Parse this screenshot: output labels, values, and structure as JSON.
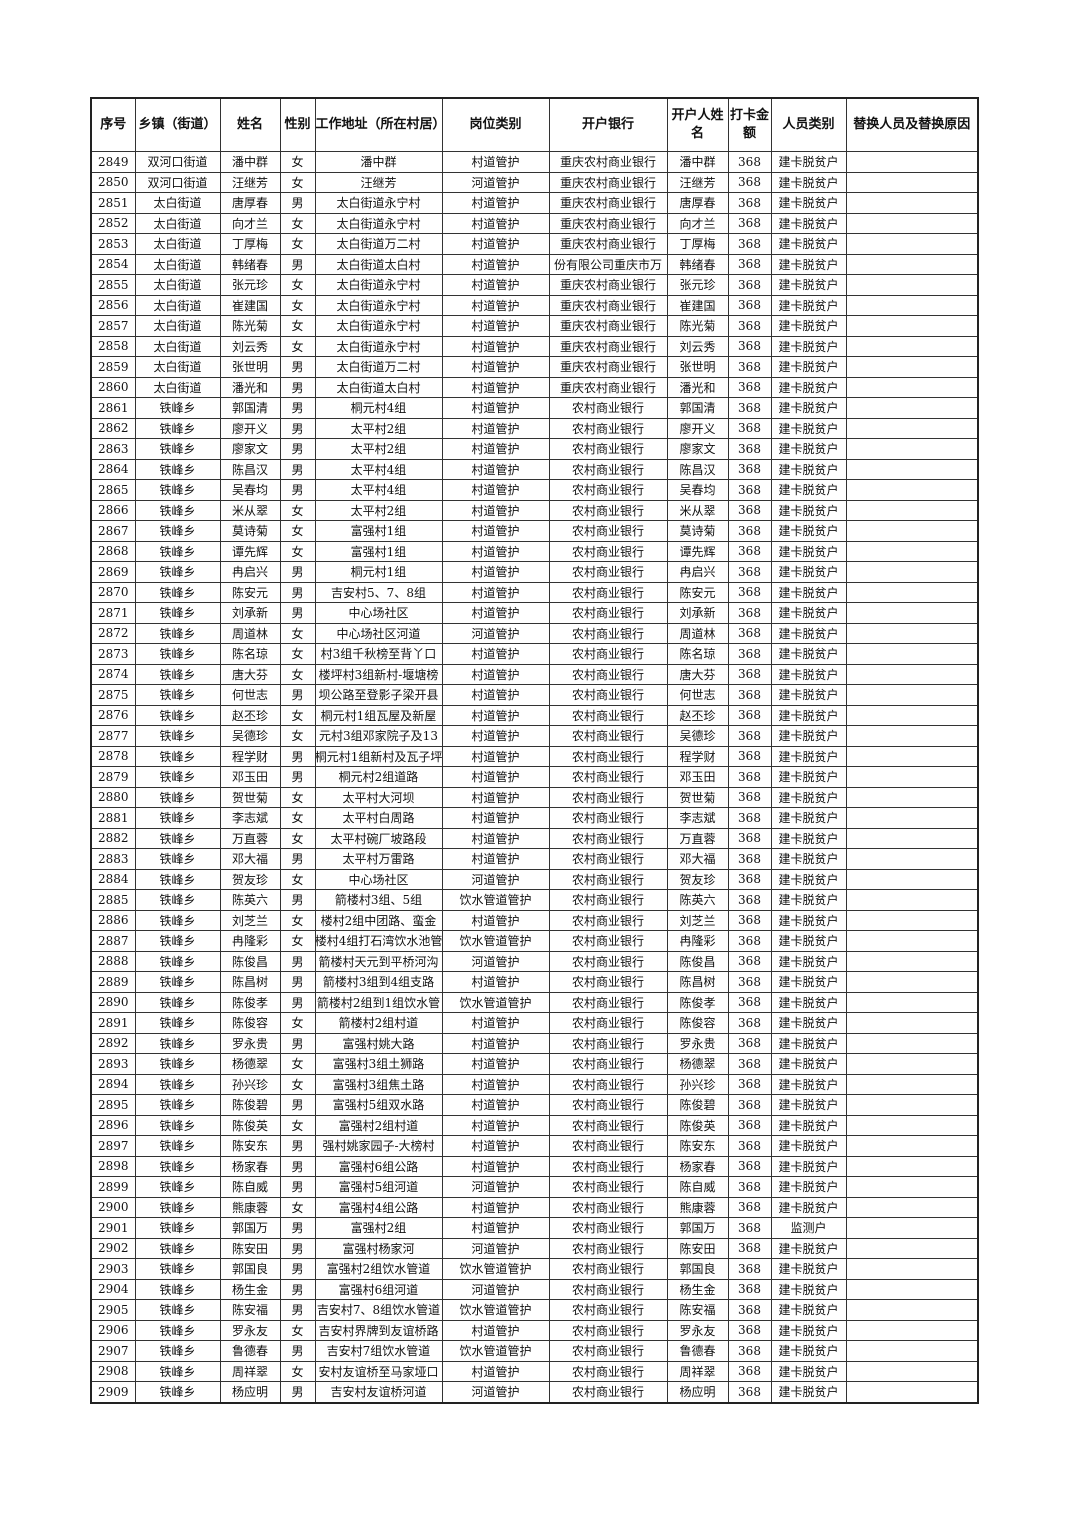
{
  "table": {
    "headers": [
      "序号",
      "乡镇（街道）",
      "姓名",
      "性别",
      "工作地址（所在村居）",
      "岗位类别",
      "开户银行",
      "开户人姓名",
      "打卡金额",
      "人员类别",
      "替换人员及替换原因"
    ],
    "rows": [
      [
        "2849",
        "双河口街道",
        "潘中群",
        "女",
        "潘中群",
        "村道管护",
        "重庆农村商业银行",
        "潘中群",
        "368",
        "建卡脱贫户",
        ""
      ],
      [
        "2850",
        "双河口街道",
        "汪继芳",
        "女",
        "汪继芳",
        "河道管护",
        "重庆农村商业银行",
        "汪继芳",
        "368",
        "建卡脱贫户",
        ""
      ],
      [
        "2851",
        "太白街道",
        "唐厚春",
        "男",
        "太白街道永宁村",
        "村道管护",
        "重庆农村商业银行",
        "唐厚春",
        "368",
        "建卡脱贫户",
        ""
      ],
      [
        "2852",
        "太白街道",
        "向才兰",
        "女",
        "太白街道永宁村",
        "村道管护",
        "重庆农村商业银行",
        "向才兰",
        "368",
        "建卡脱贫户",
        ""
      ],
      [
        "2853",
        "太白街道",
        "丁厚梅",
        "女",
        "太白街道万二村",
        "村道管护",
        "重庆农村商业银行",
        "丁厚梅",
        "368",
        "建卡脱贫户",
        ""
      ],
      [
        "2854",
        "太白街道",
        "韩绪春",
        "男",
        "太白街道太白村",
        "村道管护",
        "份有限公司重庆市万",
        "韩绪春",
        "368",
        "建卡脱贫户",
        ""
      ],
      [
        "2855",
        "太白街道",
        "张元珍",
        "女",
        "太白街道永宁村",
        "村道管护",
        "重庆农村商业银行",
        "张元珍",
        "368",
        "建卡脱贫户",
        ""
      ],
      [
        "2856",
        "太白街道",
        "崔建国",
        "女",
        "太白街道永宁村",
        "村道管护",
        "重庆农村商业银行",
        "崔建国",
        "368",
        "建卡脱贫户",
        ""
      ],
      [
        "2857",
        "太白街道",
        "陈光菊",
        "女",
        "太白街道永宁村",
        "村道管护",
        "重庆农村商业银行",
        "陈光菊",
        "368",
        "建卡脱贫户",
        ""
      ],
      [
        "2858",
        "太白街道",
        "刘云秀",
        "女",
        "太白街道永宁村",
        "村道管护",
        "重庆农村商业银行",
        "刘云秀",
        "368",
        "建卡脱贫户",
        ""
      ],
      [
        "2859",
        "太白街道",
        "张世明",
        "男",
        "太白街道万二村",
        "村道管护",
        "重庆农村商业银行",
        "张世明",
        "368",
        "建卡脱贫户",
        ""
      ],
      [
        "2860",
        "太白街道",
        "潘光和",
        "男",
        "太白街道太白村",
        "村道管护",
        "重庆农村商业银行",
        "潘光和",
        "368",
        "建卡脱贫户",
        ""
      ],
      [
        "2861",
        "铁峰乡",
        "郭国清",
        "男",
        "桐元村4组",
        "村道管护",
        "农村商业银行",
        "郭国清",
        "368",
        "建卡脱贫户",
        ""
      ],
      [
        "2862",
        "铁峰乡",
        "廖开义",
        "男",
        "太平村2组",
        "村道管护",
        "农村商业银行",
        "廖开义",
        "368",
        "建卡脱贫户",
        ""
      ],
      [
        "2863",
        "铁峰乡",
        "廖家文",
        "男",
        "太平村2组",
        "村道管护",
        "农村商业银行",
        "廖家文",
        "368",
        "建卡脱贫户",
        ""
      ],
      [
        "2864",
        "铁峰乡",
        "陈昌汉",
        "男",
        "太平村4组",
        "村道管护",
        "农村商业银行",
        "陈昌汉",
        "368",
        "建卡脱贫户",
        ""
      ],
      [
        "2865",
        "铁峰乡",
        "吴春均",
        "男",
        "太平村4组",
        "村道管护",
        "农村商业银行",
        "吴春均",
        "368",
        "建卡脱贫户",
        ""
      ],
      [
        "2866",
        "铁峰乡",
        "米从翠",
        "女",
        "太平村2组",
        "村道管护",
        "农村商业银行",
        "米从翠",
        "368",
        "建卡脱贫户",
        ""
      ],
      [
        "2867",
        "铁峰乡",
        "莫诗菊",
        "女",
        "富强村1组",
        "村道管护",
        "农村商业银行",
        "莫诗菊",
        "368",
        "建卡脱贫户",
        ""
      ],
      [
        "2868",
        "铁峰乡",
        "谭先辉",
        "女",
        "富强村1组",
        "村道管护",
        "农村商业银行",
        "谭先辉",
        "368",
        "建卡脱贫户",
        ""
      ],
      [
        "2869",
        "铁峰乡",
        "冉启兴",
        "男",
        "桐元村1组",
        "村道管护",
        "农村商业银行",
        "冉启兴",
        "368",
        "建卡脱贫户",
        ""
      ],
      [
        "2870",
        "铁峰乡",
        "陈安元",
        "男",
        "吉安村5、7、8组",
        "村道管护",
        "农村商业银行",
        "陈安元",
        "368",
        "建卡脱贫户",
        ""
      ],
      [
        "2871",
        "铁峰乡",
        "刘承新",
        "男",
        "中心场社区",
        "村道管护",
        "农村商业银行",
        "刘承新",
        "368",
        "建卡脱贫户",
        ""
      ],
      [
        "2872",
        "铁峰乡",
        "周道林",
        "女",
        "中心场社区河道",
        "河道管护",
        "农村商业银行",
        "周道林",
        "368",
        "建卡脱贫户",
        ""
      ],
      [
        "2873",
        "铁峰乡",
        "陈名琼",
        "女",
        "村3组千秋榜至背丫口",
        "村道管护",
        "农村商业银行",
        "陈名琼",
        "368",
        "建卡脱贫户",
        ""
      ],
      [
        "2874",
        "铁峰乡",
        "唐大芬",
        "女",
        "楼坪村3组新村-堰塘榜",
        "村道管护",
        "农村商业银行",
        "唐大芬",
        "368",
        "建卡脱贫户",
        ""
      ],
      [
        "2875",
        "铁峰乡",
        "何世志",
        "男",
        "坝公路至登影子梁开县",
        "村道管护",
        "农村商业银行",
        "何世志",
        "368",
        "建卡脱贫户",
        ""
      ],
      [
        "2876",
        "铁峰乡",
        "赵丕珍",
        "女",
        "桐元村1组瓦屋及新屋",
        "村道管护",
        "农村商业银行",
        "赵丕珍",
        "368",
        "建卡脱贫户",
        ""
      ],
      [
        "2877",
        "铁峰乡",
        "吴德珍",
        "女",
        "元村3组邓家院子及13",
        "村道管护",
        "农村商业银行",
        "吴德珍",
        "368",
        "建卡脱贫户",
        ""
      ],
      [
        "2878",
        "铁峰乡",
        "程学财",
        "男",
        "桐元村1组新村及瓦子坪",
        "村道管护",
        "农村商业银行",
        "程学财",
        "368",
        "建卡脱贫户",
        ""
      ],
      [
        "2879",
        "铁峰乡",
        "邓玉田",
        "男",
        "桐元村2组道路",
        "村道管护",
        "农村商业银行",
        "邓玉田",
        "368",
        "建卡脱贫户",
        ""
      ],
      [
        "2880",
        "铁峰乡",
        "贺世菊",
        "女",
        "太平村大河坝",
        "村道管护",
        "农村商业银行",
        "贺世菊",
        "368",
        "建卡脱贫户",
        ""
      ],
      [
        "2881",
        "铁峰乡",
        "李志斌",
        "女",
        "太平村白周路",
        "村道管护",
        "农村商业银行",
        "李志斌",
        "368",
        "建卡脱贫户",
        ""
      ],
      [
        "2882",
        "铁峰乡",
        "万直蓉",
        "女",
        "太平村碗厂坡路段",
        "村道管护",
        "农村商业银行",
        "万直蓉",
        "368",
        "建卡脱贫户",
        ""
      ],
      [
        "2883",
        "铁峰乡",
        "邓大福",
        "男",
        "太平村万雷路",
        "村道管护",
        "农村商业银行",
        "邓大福",
        "368",
        "建卡脱贫户",
        ""
      ],
      [
        "2884",
        "铁峰乡",
        "贺友珍",
        "女",
        "中心场社区",
        "河道管护",
        "农村商业银行",
        "贺友珍",
        "368",
        "建卡脱贫户",
        ""
      ],
      [
        "2885",
        "铁峰乡",
        "陈英六",
        "男",
        "箭楼村3组、5组",
        "饮水管道管护",
        "农村商业银行",
        "陈英六",
        "368",
        "建卡脱贫户",
        ""
      ],
      [
        "2886",
        "铁峰乡",
        "刘芝兰",
        "女",
        "楼村2组中团路、蛮金",
        "村道管护",
        "农村商业银行",
        "刘芝兰",
        "368",
        "建卡脱贫户",
        ""
      ],
      [
        "2887",
        "铁峰乡",
        "冉隆彩",
        "女",
        "楼村4组打石湾饮水池管",
        "饮水管道管护",
        "农村商业银行",
        "冉隆彩",
        "368",
        "建卡脱贫户",
        ""
      ],
      [
        "2888",
        "铁峰乡",
        "陈俊昌",
        "男",
        "箭楼村天元到平桥河沟",
        "河道管护",
        "农村商业银行",
        "陈俊昌",
        "368",
        "建卡脱贫户",
        ""
      ],
      [
        "2889",
        "铁峰乡",
        "陈昌树",
        "男",
        "箭楼村3组到4组支路",
        "村道管护",
        "农村商业银行",
        "陈昌树",
        "368",
        "建卡脱贫户",
        ""
      ],
      [
        "2890",
        "铁峰乡",
        "陈俊孝",
        "男",
        "箭楼村2组到1组饮水管",
        "饮水管道管护",
        "农村商业银行",
        "陈俊孝",
        "368",
        "建卡脱贫户",
        ""
      ],
      [
        "2891",
        "铁峰乡",
        "陈俊容",
        "女",
        "箭楼村2组村道",
        "村道管护",
        "农村商业银行",
        "陈俊容",
        "368",
        "建卡脱贫户",
        ""
      ],
      [
        "2892",
        "铁峰乡",
        "罗永贵",
        "男",
        "富强村姚大路",
        "村道管护",
        "农村商业银行",
        "罗永贵",
        "368",
        "建卡脱贫户",
        ""
      ],
      [
        "2893",
        "铁峰乡",
        "杨德翠",
        "女",
        "富强村3组土狮路",
        "村道管护",
        "农村商业银行",
        "杨德翠",
        "368",
        "建卡脱贫户",
        ""
      ],
      [
        "2894",
        "铁峰乡",
        "孙兴珍",
        "女",
        "富强村3组焦土路",
        "村道管护",
        "农村商业银行",
        "孙兴珍",
        "368",
        "建卡脱贫户",
        ""
      ],
      [
        "2895",
        "铁峰乡",
        "陈俊碧",
        "男",
        "富强村5组双水路",
        "村道管护",
        "农村商业银行",
        "陈俊碧",
        "368",
        "建卡脱贫户",
        ""
      ],
      [
        "2896",
        "铁峰乡",
        "陈俊英",
        "女",
        "富强村2组村道",
        "村道管护",
        "农村商业银行",
        "陈俊英",
        "368",
        "建卡脱贫户",
        ""
      ],
      [
        "2897",
        "铁峰乡",
        "陈安东",
        "男",
        "强村姚家园子-大榜村",
        "村道管护",
        "农村商业银行",
        "陈安东",
        "368",
        "建卡脱贫户",
        ""
      ],
      [
        "2898",
        "铁峰乡",
        "杨家春",
        "男",
        "富强村6组公路",
        "村道管护",
        "农村商业银行",
        "杨家春",
        "368",
        "建卡脱贫户",
        ""
      ],
      [
        "2899",
        "铁峰乡",
        "陈自威",
        "男",
        "富强村5组河道",
        "河道管护",
        "农村商业银行",
        "陈自威",
        "368",
        "建卡脱贫户",
        ""
      ],
      [
        "2900",
        "铁峰乡",
        "熊康蓉",
        "女",
        "富强村4组公路",
        "村道管护",
        "农村商业银行",
        "熊康蓉",
        "368",
        "建卡脱贫户",
        ""
      ],
      [
        "2901",
        "铁峰乡",
        "郭国万",
        "男",
        "富强村2组",
        "村道管护",
        "农村商业银行",
        "郭国万",
        "368",
        "监测户",
        ""
      ],
      [
        "2902",
        "铁峰乡",
        "陈安田",
        "男",
        "富强村杨家河",
        "河道管护",
        "农村商业银行",
        "陈安田",
        "368",
        "建卡脱贫户",
        ""
      ],
      [
        "2903",
        "铁峰乡",
        "郭国良",
        "男",
        "富强村2组饮水管道",
        "饮水管道管护",
        "农村商业银行",
        "郭国良",
        "368",
        "建卡脱贫户",
        ""
      ],
      [
        "2904",
        "铁峰乡",
        "杨生金",
        "男",
        "富强村6组河道",
        "河道管护",
        "农村商业银行",
        "杨生金",
        "368",
        "建卡脱贫户",
        ""
      ],
      [
        "2905",
        "铁峰乡",
        "陈安福",
        "男",
        "吉安村7、8组饮水管道",
        "饮水管道管护",
        "农村商业银行",
        "陈安福",
        "368",
        "建卡脱贫户",
        ""
      ],
      [
        "2906",
        "铁峰乡",
        "罗永友",
        "女",
        "吉安村界牌到友谊桥路",
        "村道管护",
        "农村商业银行",
        "罗永友",
        "368",
        "建卡脱贫户",
        ""
      ],
      [
        "2907",
        "铁峰乡",
        "鲁德春",
        "男",
        "吉安村7组饮水管道",
        "饮水管道管护",
        "农村商业银行",
        "鲁德春",
        "368",
        "建卡脱贫户",
        ""
      ],
      [
        "2908",
        "铁峰乡",
        "周祥翠",
        "女",
        "安村友谊桥至马家垭口",
        "村道管护",
        "农村商业银行",
        "周祥翠",
        "368",
        "建卡脱贫户",
        ""
      ],
      [
        "2909",
        "铁峰乡",
        "杨应明",
        "男",
        "吉安村友谊桥河道",
        "河道管护",
        "农村商业银行",
        "杨应明",
        "368",
        "建卡脱贫户",
        ""
      ]
    ]
  }
}
